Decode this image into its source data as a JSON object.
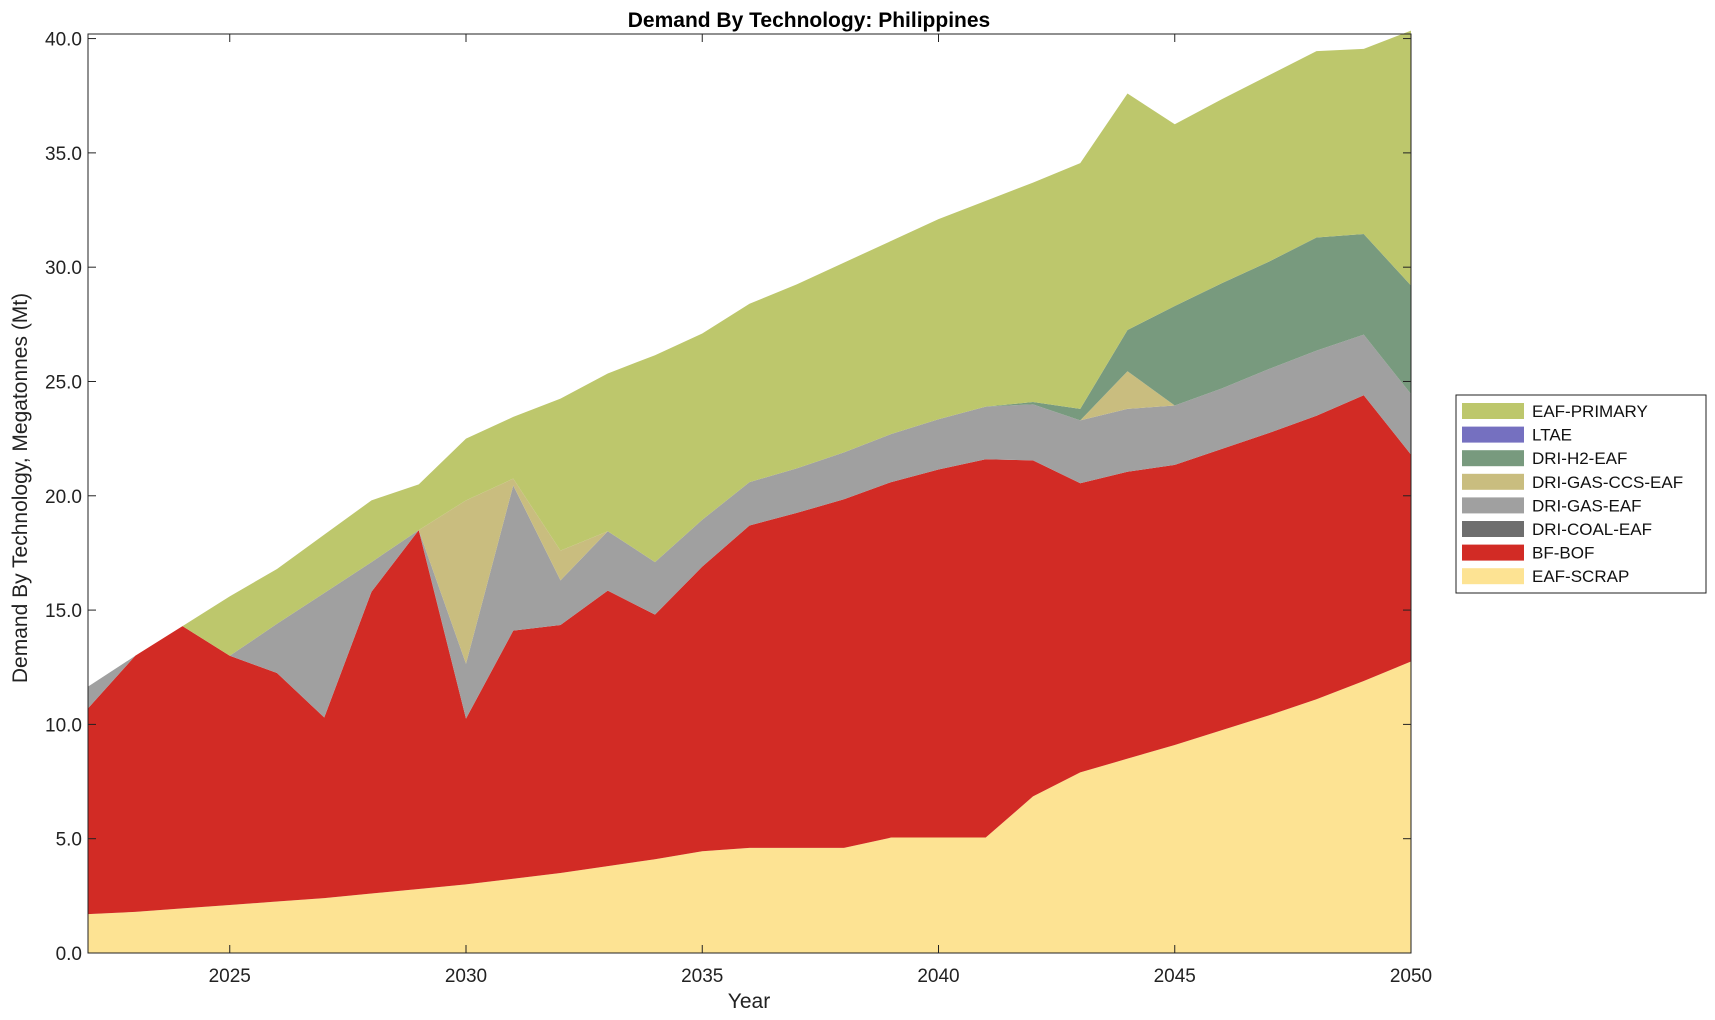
{
  "chart_data": {
    "type": "area",
    "stacked": true,
    "title": "Demand By Technology: Philippines",
    "xlabel": "Year",
    "ylabel": "Demand By Technology, Megatonnes (Mt)",
    "xlim": [
      2022,
      2050
    ],
    "ylim": [
      0,
      40.2
    ],
    "xticks": [
      2025,
      2030,
      2035,
      2040,
      2045,
      2050
    ],
    "yticks": [
      "0.0",
      "5.0",
      "10.0",
      "15.0",
      "20.0",
      "25.0",
      "30.0",
      "35.0",
      "40.0"
    ],
    "x": [
      2022,
      2023,
      2024,
      2025,
      2026,
      2027,
      2028,
      2029,
      2030,
      2031,
      2032,
      2033,
      2034,
      2035,
      2036,
      2037,
      2038,
      2039,
      2040,
      2041,
      2042,
      2043,
      2044,
      2045,
      2046,
      2047,
      2048,
      2049,
      2050
    ],
    "series": [
      {
        "name": "EAF-SCRAP",
        "color": "#fde393",
        "values": [
          1.7,
          1.8,
          1.95,
          2.1,
          2.25,
          2.4,
          2.6,
          2.8,
          3.0,
          3.25,
          3.5,
          3.8,
          4.1,
          4.45,
          4.6,
          4.6,
          4.6,
          5.05,
          5.05,
          5.05,
          6.85,
          7.9,
          8.5,
          9.1,
          9.75,
          10.4,
          11.1,
          11.9,
          12.75
        ]
      },
      {
        "name": "BF-BOF",
        "color": "#d22b25",
        "values": [
          9.0,
          11.2,
          12.35,
          10.9,
          10.0,
          7.9,
          13.2,
          15.7,
          7.25,
          10.85,
          10.85,
          12.05,
          10.7,
          12.45,
          14.1,
          14.65,
          15.25,
          15.55,
          16.1,
          16.55,
          14.7,
          12.65,
          12.55,
          12.25,
          12.3,
          12.35,
          12.4,
          12.5,
          9.05
        ]
      },
      {
        "name": "DRI-COAL-EAF",
        "color": "#6e6e6e",
        "values": [
          0,
          0,
          0,
          0,
          0,
          0,
          0,
          0,
          0,
          0,
          0,
          0,
          0,
          0,
          0,
          0,
          0,
          0,
          0,
          0,
          0,
          0,
          0,
          0,
          0,
          0,
          0,
          0,
          0
        ]
      },
      {
        "name": "DRI-GAS-EAF",
        "color": "#a0a0a0",
        "values": [
          0.95,
          0,
          0,
          0,
          2.15,
          5.45,
          1.3,
          0,
          2.4,
          6.35,
          1.95,
          2.6,
          2.3,
          2.05,
          1.9,
          1.95,
          2.05,
          2.1,
          2.2,
          2.3,
          2.45,
          2.75,
          2.75,
          2.6,
          2.65,
          2.8,
          2.85,
          2.65,
          2.65
        ]
      },
      {
        "name": "DRI-GAS-CCS-EAF",
        "color": "#c9bd7f",
        "values": [
          0,
          0,
          0,
          0,
          0,
          0,
          0,
          0,
          7.15,
          0.3,
          1.3,
          0,
          0,
          0,
          0,
          0,
          0,
          0,
          0,
          0,
          0,
          0,
          1.65,
          0,
          0,
          0,
          0,
          0,
          0
        ]
      },
      {
        "name": "DRI-H2-EAF",
        "color": "#789a7e",
        "values": [
          0,
          0,
          0,
          0,
          0,
          0,
          0,
          0,
          0,
          0,
          0,
          0,
          0,
          0,
          0,
          0,
          0,
          0,
          0,
          0,
          0.1,
          0.5,
          1.8,
          4.35,
          4.6,
          4.7,
          4.95,
          4.4,
          4.75
        ]
      },
      {
        "name": "LTAE",
        "color": "#7570c0",
        "values": [
          0,
          0,
          0,
          0,
          0,
          0,
          0,
          0,
          0,
          0,
          0,
          0,
          0,
          0,
          0,
          0,
          0,
          0,
          0,
          0,
          0,
          0,
          0,
          0,
          0,
          0,
          0,
          0,
          0
        ]
      },
      {
        "name": "EAF-PRIMARY",
        "color": "#bdc76c",
        "values": [
          0,
          0,
          0,
          2.6,
          2.4,
          2.55,
          2.7,
          2.0,
          2.7,
          2.7,
          6.65,
          6.9,
          9.05,
          8.15,
          7.8,
          8.05,
          8.3,
          8.45,
          8.75,
          9.0,
          9.6,
          10.75,
          10.35,
          7.95,
          8.05,
          8.15,
          8.15,
          8.1,
          11.15
        ]
      }
    ],
    "legend": {
      "position": "right",
      "entries": [
        "EAF-PRIMARY",
        "LTAE",
        "DRI-H2-EAF",
        "DRI-GAS-CCS-EAF",
        "DRI-GAS-EAF",
        "DRI-COAL-EAF",
        "BF-BOF",
        "EAF-SCRAP"
      ]
    },
    "grid": false
  }
}
